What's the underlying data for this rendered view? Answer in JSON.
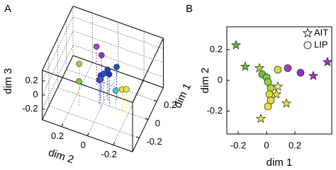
{
  "chart_data": [
    {
      "type": "scatter3d",
      "panel_label": "A",
      "xlabel": "dim 1",
      "ylabel": "dim 2",
      "zlabel": "dim 3",
      "xlim": [
        -0.35,
        0.35
      ],
      "ylim": [
        -0.35,
        0.35
      ],
      "zlim": [
        -0.35,
        0.35
      ],
      "xticks": [
        -0.2,
        0,
        0.2
      ],
      "yticks": [
        -0.2,
        0,
        0.2
      ],
      "zticks": [
        -0.2,
        0,
        0.2
      ],
      "grid": true,
      "series": [
        {
          "x": [
            0.02,
            0.05,
            -0.02,
            0.0,
            0.04,
            -0.05,
            0.15,
            0.12,
            -0.1,
            0.05,
            0.0,
            -0.05,
            0.0,
            0.08
          ],
          "y": [
            0.0,
            -0.02,
            0.02,
            -0.05,
            0.03,
            0.0,
            0.1,
            0.05,
            0.15,
            0.2,
            -0.15,
            -0.2,
            -0.1,
            -0.08
          ],
          "z": [
            0.05,
            0.08,
            0.0,
            0.1,
            -0.02,
            0.06,
            0.2,
            0.15,
            0.0,
            0.02,
            -0.05,
            0.05,
            -0.1,
            0.12
          ],
          "colors": [
            "#2a4fd0",
            "#2340c0",
            "#3050d8",
            "#1d3ab8",
            "#2848c8",
            "#3a5ae0",
            "#b040d0",
            "#9038c0",
            "#78c840",
            "#a0d040",
            "#e8e030",
            "#f0e040",
            "#40c8c8",
            "#2a4fd0"
          ]
        }
      ]
    },
    {
      "type": "scatter",
      "panel_label": "B",
      "xlabel": "dim 1",
      "ylabel": "dim 2",
      "xlim": [
        -0.28,
        0.46
      ],
      "ylim": [
        -0.35,
        0.35
      ],
      "xticks": [
        -0.2,
        0,
        0.2
      ],
      "yticks": [
        -0.2,
        0,
        0.2
      ],
      "legend": "upper right",
      "series": [
        {
          "name": "AIT",
          "marker": "star",
          "x": [
            -0.215,
            -0.15,
            -0.05,
            0.33,
            0.43,
            0.07,
            0.14,
            -0.04,
            0.08
          ],
          "y": [
            0.23,
            0.09,
            0.08,
            0.03,
            0.12,
            -0.09,
            -0.15,
            -0.25,
            -0.04
          ],
          "colors": [
            "#5cb82e",
            "#6cc040",
            "#b8d838",
            "#b030d0",
            "#a030c8",
            "#f0e040",
            "#f0e040",
            "#f0e040",
            "#f8f080"
          ]
        },
        {
          "name": "LIP",
          "marker": "circle",
          "x": [
            -0.03,
            0.0,
            0.01,
            0.03,
            0.02,
            0.03,
            0.01,
            0.08,
            0.15,
            0.24
          ],
          "y": [
            0.04,
            0.02,
            -0.01,
            -0.05,
            -0.09,
            -0.13,
            -0.17,
            0.07,
            0.08,
            0.05
          ],
          "colors": [
            "#70c040",
            "#80c840",
            "#90d040",
            "#b0d838",
            "#d8e030",
            "#e8e030",
            "#f0e040",
            "#c8e040",
            "#a040c0",
            "#9030c0"
          ]
        }
      ]
    }
  ]
}
